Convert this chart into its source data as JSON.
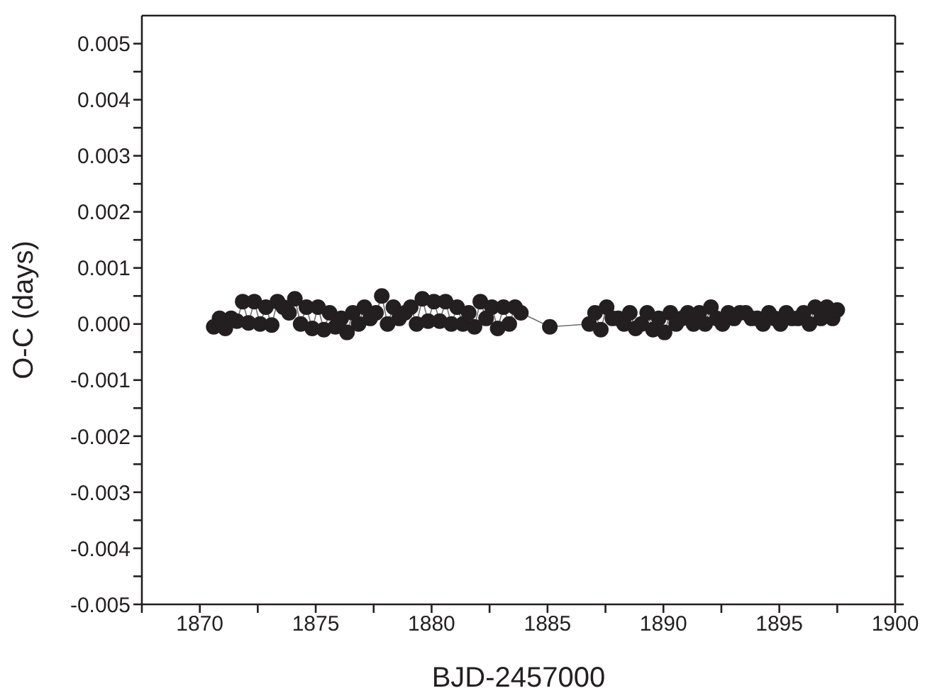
{
  "chart_data": {
    "type": "line",
    "xlabel": "BJD-2457000",
    "ylabel": "O-C (days)",
    "marker": "circle",
    "line_style": "solid",
    "xlim": [
      1867.5,
      1900
    ],
    "xticks": [
      {
        "value": 1867.5,
        "label": null
      },
      1870,
      {
        "value": 1872.5,
        "label": null
      },
      1875,
      {
        "value": 1877.5,
        "label": null
      },
      1880,
      {
        "value": 1882.5,
        "label": null
      },
      1885,
      {
        "value": 1887.5,
        "label": null
      },
      1890,
      {
        "value": 1892.5,
        "label": null
      },
      1895,
      {
        "value": 1897.5,
        "label": null
      },
      1900
    ],
    "ylim": [
      -0.005,
      0.0055
    ],
    "yticks": [
      -0.005,
      {
        "value": -0.0045,
        "label": null
      },
      -0.004,
      {
        "value": -0.0035,
        "label": null
      },
      -0.003,
      {
        "value": -0.0025,
        "label": null
      },
      -0.002,
      {
        "value": -0.0015,
        "label": null
      },
      -0.001,
      {
        "value": -0.0005,
        "label": null
      },
      {
        "value": 0,
        "label": "0.000"
      },
      {
        "value": 0.0005,
        "label": null
      },
      0.001,
      {
        "value": 0.0015,
        "label": null
      },
      0.002,
      {
        "value": 0.0025,
        "label": null
      },
      0.003,
      {
        "value": 0.0035,
        "label": null
      },
      0.004,
      {
        "value": 0.0045,
        "label": null
      },
      0.005
    ],
    "series": [
      {
        "color": "#231f20",
        "x": [
          1870.6,
          1870.85,
          1871.1,
          1871.35,
          1871.6,
          1871.85,
          1872.1,
          1872.35,
          1872.6,
          1872.85,
          1873.1,
          1873.35,
          1873.6,
          1873.85,
          1874.1,
          1874.35,
          1874.6,
          1874.85,
          1875.1,
          1875.35,
          1875.6,
          1875.85,
          1876.1,
          1876.35,
          1876.6,
          1876.85,
          1877.1,
          1877.35,
          1877.6,
          1877.85,
          1878.1,
          1878.35,
          1878.6,
          1878.85,
          1879.1,
          1879.35,
          1879.6,
          1879.85,
          1880.1,
          1880.35,
          1880.6,
          1880.85,
          1881.1,
          1881.35,
          1881.6,
          1881.85,
          1882.1,
          1882.35,
          1882.6,
          1882.85,
          1883.1,
          1883.35,
          1883.6,
          1883.85,
          1885.1,
          1886.8,
          1887.05,
          1887.3,
          1887.55,
          1887.8,
          1888.05,
          1888.3,
          1888.55,
          1888.8,
          1889.05,
          1889.3,
          1889.55,
          1889.8,
          1890.05,
          1890.3,
          1890.55,
          1890.8,
          1891.05,
          1891.3,
          1891.55,
          1891.8,
          1892.05,
          1892.3,
          1892.55,
          1892.8,
          1893.05,
          1893.3,
          1893.55,
          1893.8,
          1894.05,
          1894.3,
          1894.55,
          1894.8,
          1895.05,
          1895.3,
          1895.55,
          1895.8,
          1896.05,
          1896.3,
          1896.55,
          1896.8,
          1897.05,
          1897.3,
          1897.5
        ],
        "values": [
          -5e-05,
          0.0001,
          -8e-05,
          0.0001,
          5e-05,
          0.0004,
          2e-05,
          0.0004,
          0.0,
          0.0003,
          -2e-05,
          0.0004,
          0.0003,
          0.0002,
          0.00045,
          0.0,
          0.0003,
          -8e-05,
          0.0003,
          -0.0001,
          0.0002,
          -5e-05,
          0.0001,
          -0.00015,
          0.0002,
          0.0,
          0.0003,
          0.0001,
          0.0002,
          0.0005,
          0.0,
          0.0003,
          0.0001,
          0.0002,
          0.0003,
          0.0,
          0.00045,
          5e-05,
          0.0004,
          5e-05,
          0.0004,
          0.0,
          0.0003,
          0.0,
          0.0002,
          -5e-05,
          0.0004,
          0.0001,
          0.0003,
          -8e-05,
          0.0003,
          0.0,
          0.0003,
          0.0002,
          -5e-05,
          0.0,
          0.0002,
          -0.0001,
          0.0003,
          0.0001,
          0.0001,
          0.0,
          0.0002,
          -8e-05,
          0.0,
          0.0002,
          -0.0001,
          0.0001,
          -0.00015,
          0.0002,
          0.0,
          0.0001,
          0.0002,
          0.0,
          0.0002,
          0.0,
          0.0003,
          0.0001,
          0.0,
          0.0002,
          0.0001,
          0.0002,
          0.0002,
          0.0001,
          0.0001,
          0.0,
          0.0002,
          0.0001,
          0.0,
          0.0002,
          0.0001,
          0.0001,
          0.0002,
          0.0,
          0.0003,
          0.0001,
          0.0003,
          0.0001,
          0.00025
        ]
      }
    ]
  }
}
